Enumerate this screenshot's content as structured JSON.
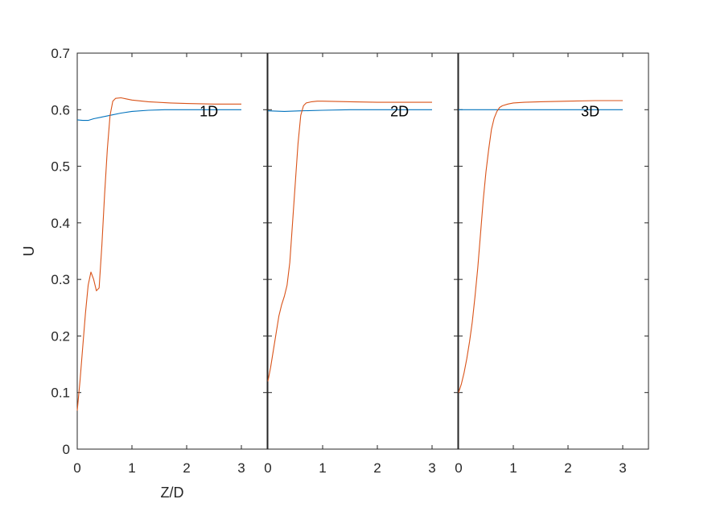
{
  "chart_data": {
    "type": "line",
    "layout": "three side-by-side panels sharing the y-axis",
    "ylabel": "U",
    "xlabel": "Z/D",
    "ylim": [
      0,
      0.7
    ],
    "yticks": [
      0,
      0.1,
      0.2,
      0.3,
      0.4,
      0.5,
      0.6,
      0.7
    ],
    "yticklabels": [
      "0",
      "0.1",
      "0.2",
      "0.3",
      "0.4",
      "0.5",
      "0.6",
      "0.7"
    ],
    "xlim": [
      0,
      3.49
    ],
    "xticks": [
      0,
      1,
      2,
      3
    ],
    "xticklabels": [
      "0",
      "1",
      "2",
      "3"
    ],
    "grid": false,
    "legend": null,
    "colors": {
      "blue": "#0072BD",
      "orange": "#D95319",
      "axis": "#262626"
    },
    "panels": [
      {
        "annotation": "1D",
        "annotation_pos": [
          2.2,
          0.6
        ],
        "series": [
          {
            "name": "blue",
            "color": "#0072BD",
            "x": [
              0,
              0.1,
              0.2,
              0.3,
              0.45,
              0.6,
              0.8,
              1.0,
              1.3,
              1.6,
              2.0,
              2.5,
              3.0
            ],
            "y": [
              0.582,
              0.581,
              0.581,
              0.584,
              0.587,
              0.59,
              0.594,
              0.597,
              0.599,
              0.6,
              0.6,
              0.6,
              0.6
            ]
          },
          {
            "name": "orange",
            "color": "#D95319",
            "x": [
              0,
              0.05,
              0.1,
              0.15,
              0.2,
              0.25,
              0.3,
              0.35,
              0.4,
              0.45,
              0.5,
              0.55,
              0.6,
              0.65,
              0.7,
              0.8,
              0.9,
              1.0,
              1.3,
              1.7,
              2.0,
              2.5,
              3.0
            ],
            "y": [
              0.068,
              0.12,
              0.18,
              0.24,
              0.29,
              0.313,
              0.3,
              0.28,
              0.285,
              0.36,
              0.45,
              0.53,
              0.59,
              0.615,
              0.62,
              0.621,
              0.619,
              0.617,
              0.614,
              0.612,
              0.611,
              0.61,
              0.61
            ]
          }
        ]
      },
      {
        "annotation": "2D",
        "annotation_pos": [
          2.2,
          0.6
        ],
        "series": [
          {
            "name": "blue",
            "color": "#0072BD",
            "x": [
              0,
              0.3,
              0.6,
              1.0,
              1.5,
              2.0,
              2.5,
              3.0
            ],
            "y": [
              0.598,
              0.597,
              0.598,
              0.599,
              0.6,
              0.6,
              0.6,
              0.6
            ]
          },
          {
            "name": "orange",
            "color": "#D95319",
            "x": [
              0,
              0.05,
              0.1,
              0.15,
              0.2,
              0.25,
              0.3,
              0.35,
              0.4,
              0.45,
              0.5,
              0.55,
              0.6,
              0.65,
              0.7,
              0.8,
              0.9,
              1.0,
              1.5,
              2.0,
              2.5,
              3.0
            ],
            "y": [
              0.12,
              0.145,
              0.175,
              0.205,
              0.235,
              0.255,
              0.27,
              0.29,
              0.33,
              0.4,
              0.47,
              0.54,
              0.59,
              0.607,
              0.612,
              0.614,
              0.615,
              0.615,
              0.614,
              0.613,
              0.613,
              0.613
            ]
          }
        ]
      },
      {
        "annotation": "3D",
        "annotation_pos": [
          2.2,
          0.6
        ],
        "series": [
          {
            "name": "blue",
            "color": "#0072BD",
            "x": [
              0,
              1.0,
              2.0,
              3.0
            ],
            "y": [
              0.6,
              0.6,
              0.6,
              0.6
            ]
          },
          {
            "name": "orange",
            "color": "#D95319",
            "x": [
              0,
              0.05,
              0.1,
              0.15,
              0.2,
              0.25,
              0.3,
              0.35,
              0.4,
              0.45,
              0.5,
              0.55,
              0.6,
              0.65,
              0.7,
              0.75,
              0.8,
              0.9,
              1.0,
              1.2,
              1.5,
              2.0,
              2.5,
              3.0
            ],
            "y": [
              0.1,
              0.115,
              0.135,
              0.16,
              0.19,
              0.225,
              0.27,
              0.32,
              0.38,
              0.44,
              0.49,
              0.53,
              0.565,
              0.585,
              0.597,
              0.604,
              0.607,
              0.61,
              0.612,
              0.613,
              0.614,
              0.615,
              0.616,
              0.616
            ]
          }
        ]
      }
    ]
  },
  "labels": {
    "ylabel": "U",
    "xlabel": "Z/D",
    "panel_annotations": [
      "1D",
      "2D",
      "3D"
    ]
  }
}
